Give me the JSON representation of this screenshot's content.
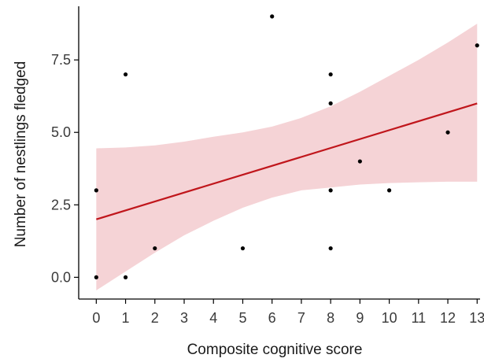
{
  "chart_data": {
    "type": "scatter",
    "xlabel": "Composite cognitive score",
    "ylabel": "Number of nestlings fledged",
    "xlim": [
      -0.6,
      13.1
    ],
    "ylim": [
      -0.75,
      9.35
    ],
    "x_ticks": [
      0,
      1,
      2,
      3,
      4,
      5,
      6,
      7,
      8,
      9,
      10,
      11,
      12,
      13
    ],
    "x_tick_labels": [
      "0",
      "1",
      "2",
      "3",
      "4",
      "5",
      "6",
      "7",
      "8",
      "9",
      "10",
      "11",
      "12",
      "13"
    ],
    "y_ticks": [
      0,
      2.5,
      5,
      7.5
    ],
    "y_tick_labels": [
      "0.0",
      "2.5",
      "5.0",
      "7.5"
    ],
    "grid": false,
    "points": [
      {
        "x": 0,
        "y": 3
      },
      {
        "x": 0,
        "y": 0
      },
      {
        "x": 1,
        "y": 7
      },
      {
        "x": 1,
        "y": 0
      },
      {
        "x": 2,
        "y": 1
      },
      {
        "x": 5,
        "y": 1
      },
      {
        "x": 6,
        "y": 9
      },
      {
        "x": 8,
        "y": 7
      },
      {
        "x": 8,
        "y": 6
      },
      {
        "x": 8,
        "y": 3
      },
      {
        "x": 8,
        "y": 1
      },
      {
        "x": 9,
        "y": 4
      },
      {
        "x": 10,
        "y": 3
      },
      {
        "x": 12,
        "y": 5
      },
      {
        "x": 13,
        "y": 8
      }
    ],
    "fit_line": {
      "x": [
        0,
        13
      ],
      "y": [
        2.0,
        6.0
      ],
      "color": "#c0161c"
    },
    "confidence_band": {
      "x": [
        0,
        1,
        2,
        3,
        4,
        5,
        6,
        7,
        8,
        9,
        10,
        11,
        12,
        13
      ],
      "upper": [
        4.45,
        4.48,
        4.55,
        4.68,
        4.85,
        5.0,
        5.2,
        5.5,
        5.9,
        6.4,
        6.95,
        7.5,
        8.1,
        8.75
      ],
      "lower": [
        -0.45,
        0.2,
        0.85,
        1.45,
        1.95,
        2.4,
        2.75,
        3.0,
        3.1,
        3.2,
        3.25,
        3.28,
        3.3,
        3.3
      ],
      "color": "#f5d3d6"
    },
    "point_color": "#000000"
  }
}
